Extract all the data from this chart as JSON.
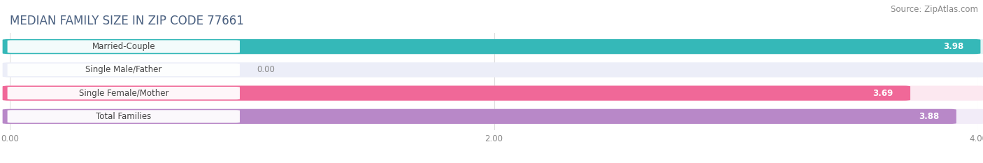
{
  "title": "MEDIAN FAMILY SIZE IN ZIP CODE 77661",
  "source": "Source: ZipAtlas.com",
  "categories": [
    "Married-Couple",
    "Single Male/Father",
    "Single Female/Mother",
    "Total Families"
  ],
  "values": [
    3.98,
    0.0,
    3.69,
    3.88
  ],
  "bar_colors": [
    "#35b8b8",
    "#a8b8e0",
    "#f06898",
    "#b888c8"
  ],
  "bar_bg_colors": [
    "#e0f4f4",
    "#eceef8",
    "#fce8f0",
    "#f2ecf8"
  ],
  "xlim": [
    0,
    4.0
  ],
  "xticks": [
    0.0,
    2.0,
    4.0
  ],
  "xticklabels": [
    "0.00",
    "2.00",
    "4.00"
  ],
  "figsize": [
    14.06,
    2.33
  ],
  "dpi": 100,
  "title_fontsize": 12,
  "bar_height": 0.58,
  "value_fontsize": 8.5,
  "label_fontsize": 8.5,
  "tick_fontsize": 8.5,
  "source_fontsize": 8.5,
  "bg_color": "#ffffff",
  "title_color": "#4a6080",
  "source_color": "#888888",
  "tick_color": "#888888",
  "grid_color": "#dddddd"
}
